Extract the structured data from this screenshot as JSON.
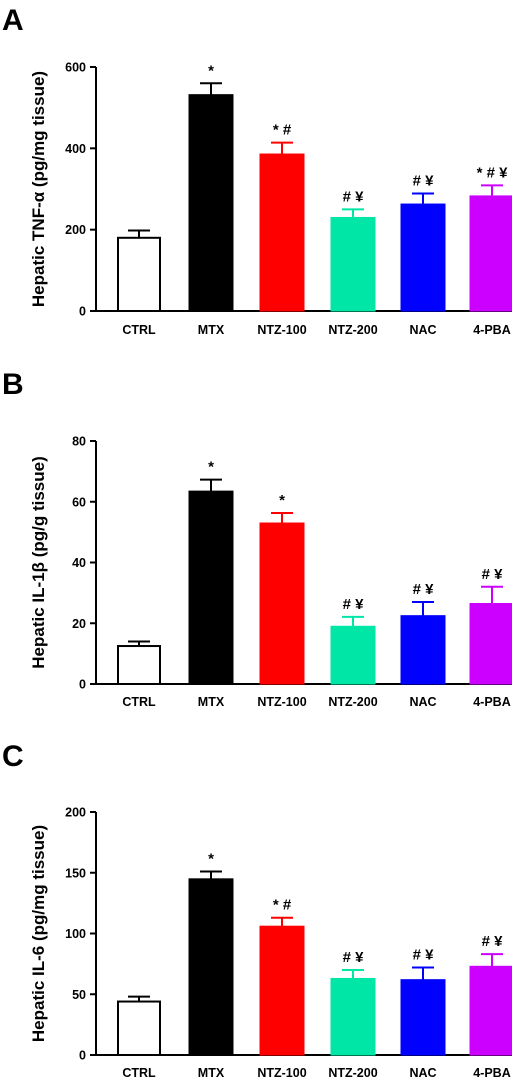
{
  "chart_data": [
    {
      "type": "bar",
      "panel_label": "A",
      "ylabel": "Hepatic TNF-α  (pg/mg tissue)",
      "ylim": [
        0,
        600
      ],
      "yticks": [
        0,
        200,
        400,
        600
      ],
      "categories": [
        "CTRL",
        "MTX",
        "NTZ-100",
        "NTZ-200",
        "NAC",
        "4-PBA"
      ],
      "values": [
        180,
        532,
        386,
        230,
        263,
        283
      ],
      "errors": [
        18,
        28,
        28,
        20,
        26,
        26
      ],
      "annotations": [
        "",
        "*",
        "* #",
        "# ¥",
        "# ¥",
        "* # ¥"
      ],
      "colors": [
        "#ffffff",
        "#000000",
        "#ff0000",
        "#00e6a6",
        "#0000ff",
        "#cc00ff"
      ]
    },
    {
      "type": "bar",
      "panel_label": "B",
      "ylabel": "Hepatic IL-1β (pg/g tissue)",
      "ylim": [
        0,
        80
      ],
      "yticks": [
        0,
        20,
        40,
        60,
        80
      ],
      "categories": [
        "CTRL",
        "MTX",
        "NTZ-100",
        "NTZ-200",
        "NAC",
        "4-PBA"
      ],
      "values": [
        12.5,
        63.5,
        53,
        19,
        22.5,
        26.5
      ],
      "errors": [
        1.5,
        3.8,
        3.3,
        3.1,
        4.5,
        5.5
      ],
      "annotations": [
        "",
        "*",
        "*",
        "# ¥",
        "# ¥",
        "# ¥"
      ],
      "colors": [
        "#ffffff",
        "#000000",
        "#ff0000",
        "#00e6a6",
        "#0000ff",
        "#cc00ff"
      ]
    },
    {
      "type": "bar",
      "panel_label": "C",
      "ylabel": "Hepatic IL-6 (pg/mg tissue)",
      "ylim": [
        0,
        200
      ],
      "yticks": [
        0,
        50,
        100,
        150,
        200
      ],
      "categories": [
        "CTRL",
        "MTX",
        "NTZ-100",
        "NTZ-200",
        "NAC",
        "4-PBA"
      ],
      "values": [
        44,
        145,
        106,
        63,
        62,
        73
      ],
      "errors": [
        4,
        6,
        7,
        7,
        10,
        10
      ],
      "annotations": [
        "",
        "*",
        "* #",
        "# ¥",
        "# ¥",
        "# ¥"
      ],
      "colors": [
        "#ffffff",
        "#000000",
        "#ff0000",
        "#00e6a6",
        "#0000ff",
        "#cc00ff"
      ]
    }
  ]
}
